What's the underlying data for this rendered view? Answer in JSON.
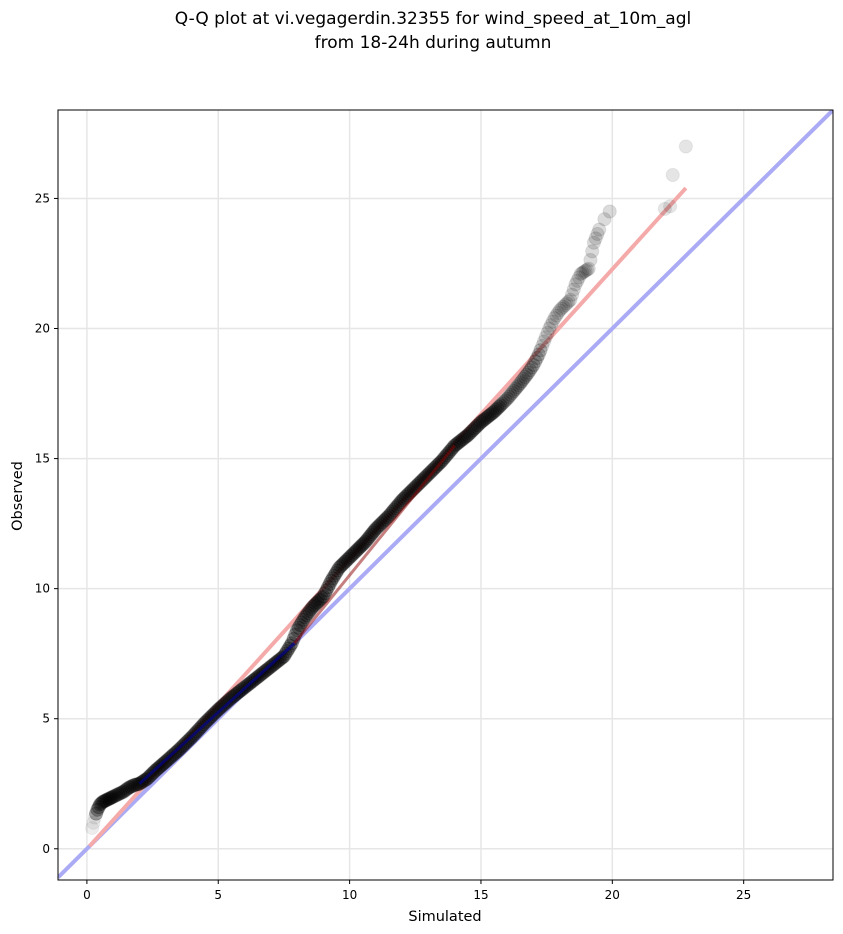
{
  "chart_data": {
    "type": "scatter",
    "title": [
      "Q-Q plot at vi.vegagerdin.32355 for wind_speed_at_10m_agl",
      "from 18-24h during autumn"
    ],
    "xlabel": "Simulated",
    "ylabel": "Observed",
    "xlim": [
      -1.1,
      28.4
    ],
    "ylim": [
      -1.2,
      28.4
    ],
    "xticks": [
      0,
      5,
      10,
      15,
      20,
      25
    ],
    "yticks": [
      0,
      5,
      10,
      15,
      20,
      25
    ],
    "grid": true,
    "colors": {
      "points": "#000000",
      "identity_line": "#aaaaf5",
      "fit_line": "#f5aaaa",
      "low_segment": "#0000aa",
      "mid_segment": "#8b0000"
    },
    "identity_line": {
      "x": [
        -1.1,
        28.4
      ],
      "y": [
        -1.1,
        28.4
      ]
    },
    "fit_line": {
      "x": [
        0.1,
        22.8
      ],
      "y": [
        0.1,
        25.4
      ]
    },
    "quantiles": {
      "x": [
        0.2,
        0.25,
        0.3,
        0.35,
        0.4,
        0.5,
        0.6,
        0.7,
        0.8,
        0.9,
        1.0,
        1.2,
        1.4,
        1.6,
        1.8,
        2.0,
        2.3,
        2.6,
        3.0,
        3.5,
        4.0,
        4.5,
        5.0,
        5.5,
        6.0,
        6.5,
        7.0,
        7.5,
        7.8,
        8.0,
        8.3,
        8.6,
        9.0,
        9.3,
        9.6,
        9.9,
        10.2,
        10.6,
        11.0,
        11.5,
        12.0,
        12.5,
        13.0,
        13.5,
        14.0,
        14.5,
        15.0,
        15.5,
        16.0,
        16.5,
        16.8,
        17.0,
        17.2,
        17.4,
        17.6,
        17.8,
        18.0,
        18.2,
        18.4,
        18.6,
        18.8,
        19.1,
        19.3,
        19.5,
        19.7,
        19.9,
        22.0,
        22.2,
        22.3,
        22.8
      ],
      "y": [
        0.8,
        1.0,
        1.2,
        1.35,
        1.5,
        1.7,
        1.8,
        1.85,
        1.9,
        1.95,
        2.0,
        2.1,
        2.2,
        2.35,
        2.45,
        2.5,
        2.7,
        3.0,
        3.35,
        3.8,
        4.3,
        4.85,
        5.35,
        5.8,
        6.2,
        6.6,
        7.0,
        7.4,
        7.9,
        8.4,
        8.9,
        9.3,
        9.7,
        10.3,
        10.8,
        11.1,
        11.4,
        11.8,
        12.3,
        12.8,
        13.4,
        13.9,
        14.4,
        14.9,
        15.5,
        15.9,
        16.4,
        16.8,
        17.3,
        17.9,
        18.3,
        18.6,
        19.0,
        19.5,
        20.0,
        20.4,
        20.7,
        20.9,
        21.1,
        21.7,
        22.1,
        22.3,
        23.3,
        23.8,
        24.2,
        24.5,
        24.6,
        24.7,
        25.9,
        27.0
      ]
    },
    "low_segment": {
      "x": [
        2.0,
        7.9
      ],
      "y": [
        2.5,
        7.9
      ]
    },
    "mid_segment": {
      "x": [
        7.9,
        14.0
      ],
      "y": [
        7.9,
        15.5
      ]
    }
  }
}
